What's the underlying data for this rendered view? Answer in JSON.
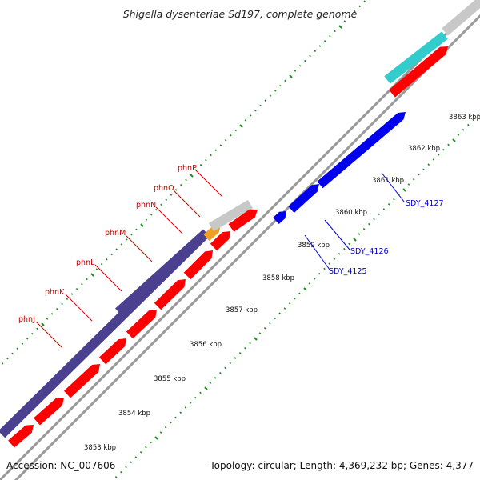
{
  "title": "Shigella dysenteriae Sd197, complete genome",
  "accession": "Accession: NC_007606",
  "topology": "Topology: circular; Length: 4,369,232 bp; Genes: 4,377",
  "kbp_labels": [
    "3853 kbp",
    "3854 kbp",
    "3855 kbp",
    "3856 kbp",
    "3857 kbp",
    "3858 kbp",
    "3859 kbp",
    "3860 kbp",
    "3861 kbp",
    "3862 kbp",
    "3863 kbp"
  ],
  "red_gene_labels": [
    "phnJ",
    "phnK",
    "phnL",
    "phnM",
    "phnN",
    "phnO",
    "phnP"
  ],
  "blue_gene_labels": [
    "SDY_4125",
    "SDY_4126",
    "SDY_4127"
  ],
  "colors": {
    "red_feature": "#ff0000",
    "blue_feature": "#0000ee",
    "purple_feature": "#4b3f8f",
    "orange_feature": "#f0a020",
    "cyan_feature": "#33cccc",
    "gray_feature": "#c8c8c8",
    "backbone": "#888888",
    "tick_green": "#1a8a1a"
  }
}
